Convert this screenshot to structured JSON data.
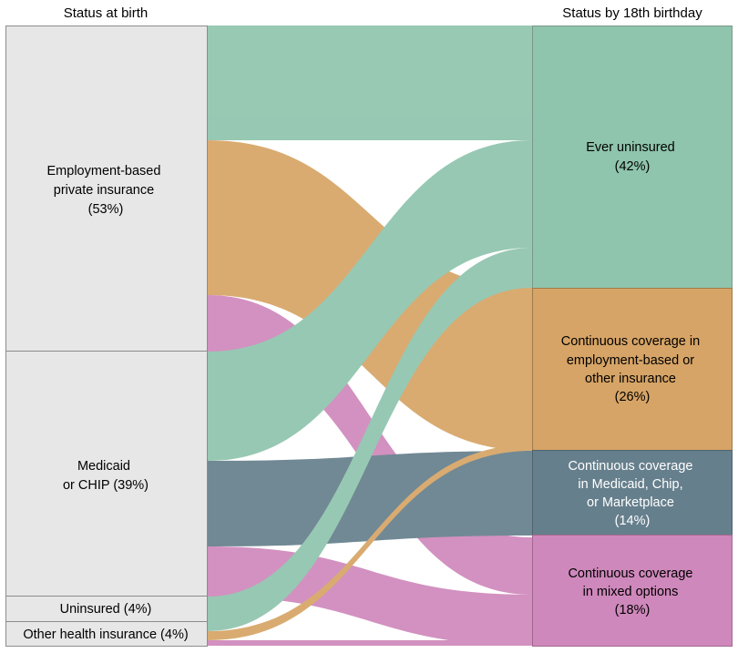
{
  "headers": {
    "left": "Status at birth",
    "right": "Status by 18th birthday"
  },
  "sources": [
    {
      "id": "employment",
      "lines": [
        "Employment-based",
        "private insurance",
        "(53%)"
      ]
    },
    {
      "id": "medicaid",
      "lines": [
        "Medicaid",
        "or CHIP (39%)"
      ]
    },
    {
      "id": "uninsured",
      "lines": [
        "Uninsured (4%)"
      ]
    },
    {
      "id": "other",
      "lines": [
        "Other health insurance (4%)"
      ]
    }
  ],
  "targets": [
    {
      "id": "ever_uninsured",
      "lines": [
        "Ever uninsured",
        "(42%)"
      ],
      "color": "#8fc4ad",
      "text_color": "#000000"
    },
    {
      "id": "continuous_employment",
      "lines": [
        "Continuous coverage in",
        "employment-based or",
        "other insurance",
        "(26%)"
      ],
      "color": "#d6a466",
      "text_color": "#000000"
    },
    {
      "id": "continuous_medicaid",
      "lines": [
        "Continuous coverage",
        "in Medicaid, Chip,",
        "or Marketplace",
        "(14%)"
      ],
      "color": "#667f8c",
      "text_color": "#ffffff"
    },
    {
      "id": "continuous_mixed",
      "lines": [
        "Continuous coverage",
        "in mixed options",
        "(18%)"
      ],
      "color": "#cf88bb",
      "text_color": "#000000"
    }
  ],
  "colors": {
    "source_fill": "#e6e7e6",
    "source_stroke": "#8c8c8c",
    "flow_ever_uninsured": "#8fc4ad",
    "flow_employment": "#d6a466",
    "flow_medicaid": "#667f8c",
    "flow_mixed": "#cf88bb"
  }
}
